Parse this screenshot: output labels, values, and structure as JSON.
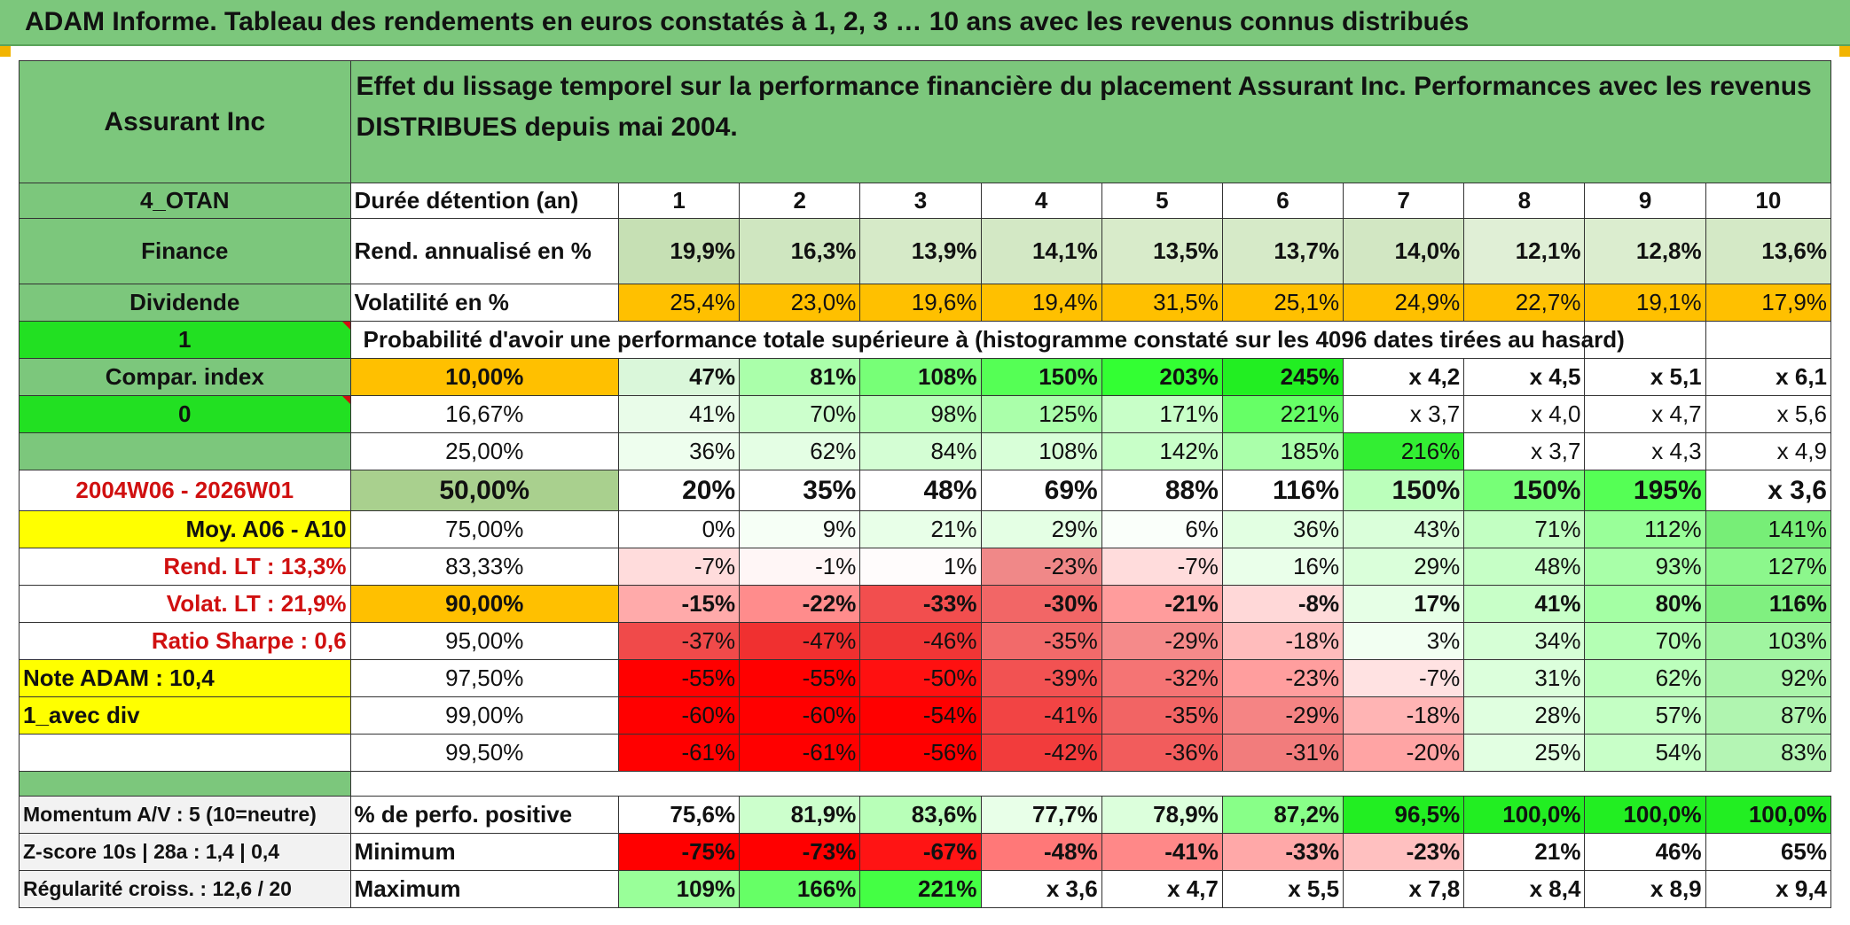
{
  "report_title": "ADAM Informe. Tableau des rendements en euros constatés à 1, 2, 3 … 10 ans avec les revenus connus distribués",
  "company": "Assurant Inc",
  "table_title": "Effet du lissage temporel sur la performance financière du placement Assurant Inc. Performances avec les revenus DISTRIBUES depuis mai 2004.",
  "side": {
    "tag1": "4_OTAN",
    "tag2": "Finance",
    "tag3": "Dividende",
    "tag4": "1",
    "tag5": "Compar. index",
    "tag6": "0",
    "period": "2004W06 - 2026W01",
    "moy": "Moy. A06 - A10",
    "rend_lt": "Rend. LT :   13,3%",
    "volat_lt": "Volat. LT :   21,9%",
    "sharpe": "Ratio Sharpe :    0,6",
    "note": "Note ADAM : 10,4",
    "div": "1_avec div",
    "momentum": "Momentum A/V : 5 (10=neutre)",
    "zscore": "Z-score 10s | 28a : 1,4 | 0,4",
    "regularite": "Régularité croiss. : 12,6 / 20"
  },
  "duration_label": "Durée détention (an)",
  "years": [
    "1",
    "2",
    "3",
    "4",
    "5",
    "6",
    "7",
    "8",
    "9",
    "10"
  ],
  "rend_label": "Rend. annualisé en %",
  "rend": [
    "19,9%",
    "16,3%",
    "13,9%",
    "14,1%",
    "13,5%",
    "13,7%",
    "14,0%",
    "12,1%",
    "12,8%",
    "13,6%"
  ],
  "vol_label": "Volatilité en %",
  "vol": [
    "25,4%",
    "23,0%",
    "19,6%",
    "19,4%",
    "31,5%",
    "25,1%",
    "24,9%",
    "22,7%",
    "19,1%",
    "17,9%"
  ],
  "prob_label": "Probabilité d'avoir une performance totale supérieure à (histogramme constaté sur les 4096 dates tirées au hasard)",
  "pct_rows": [
    {
      "p": "10,00%",
      "v": [
        "47%",
        "81%",
        "108%",
        "150%",
        "203%",
        "245%",
        "x 4,2",
        "x 4,5",
        "x 5,1",
        "x 6,1"
      ]
    },
    {
      "p": "16,67%",
      "v": [
        "41%",
        "70%",
        "98%",
        "125%",
        "171%",
        "221%",
        "x 3,7",
        "x 4,0",
        "x 4,7",
        "x 5,6"
      ]
    },
    {
      "p": "25,00%",
      "v": [
        "36%",
        "62%",
        "84%",
        "108%",
        "142%",
        "185%",
        "216%",
        "x 3,7",
        "x 4,3",
        "x 4,9"
      ]
    },
    {
      "p": "50,00%",
      "v": [
        "20%",
        "35%",
        "48%",
        "69%",
        "88%",
        "116%",
        "150%",
        "150%",
        "195%",
        "x 3,6"
      ]
    },
    {
      "p": "75,00%",
      "v": [
        "0%",
        "9%",
        "21%",
        "29%",
        "6%",
        "36%",
        "43%",
        "71%",
        "112%",
        "141%"
      ]
    },
    {
      "p": "83,33%",
      "v": [
        "-7%",
        "-1%",
        "1%",
        "-23%",
        "-7%",
        "16%",
        "29%",
        "48%",
        "93%",
        "127%"
      ]
    },
    {
      "p": "90,00%",
      "v": [
        "-15%",
        "-22%",
        "-33%",
        "-30%",
        "-21%",
        "-8%",
        "17%",
        "41%",
        "80%",
        "116%"
      ]
    },
    {
      "p": "95,00%",
      "v": [
        "-37%",
        "-47%",
        "-46%",
        "-35%",
        "-29%",
        "-18%",
        "3%",
        "34%",
        "70%",
        "103%"
      ]
    },
    {
      "p": "97,50%",
      "v": [
        "-55%",
        "-55%",
        "-50%",
        "-39%",
        "-32%",
        "-23%",
        "-7%",
        "31%",
        "62%",
        "92%"
      ]
    },
    {
      "p": "99,00%",
      "v": [
        "-60%",
        "-60%",
        "-54%",
        "-41%",
        "-35%",
        "-29%",
        "-18%",
        "28%",
        "57%",
        "87%"
      ]
    },
    {
      "p": "99,50%",
      "v": [
        "-61%",
        "-61%",
        "-56%",
        "-42%",
        "-36%",
        "-31%",
        "-20%",
        "25%",
        "54%",
        "83%"
      ]
    }
  ],
  "positive_label": "% de perfo. positive",
  "positive": [
    "75,6%",
    "81,9%",
    "83,6%",
    "77,7%",
    "78,9%",
    "87,2%",
    "96,5%",
    "100,0%",
    "100,0%",
    "100,0%"
  ],
  "min_label": "Minimum",
  "min": [
    "-75%",
    "-73%",
    "-67%",
    "-48%",
    "-41%",
    "-33%",
    "-23%",
    "21%",
    "46%",
    "65%"
  ],
  "max_label": "Maximum",
  "max": [
    "109%",
    "166%",
    "221%",
    "x 3,6",
    "x 4,7",
    "x 5,5",
    "x 7,8",
    "x 8,4",
    "x 8,9",
    "x 9,4"
  ],
  "colors": {
    "header_green": "#7cc77c",
    "rend_green": "#c6e0b4",
    "vol_orange": "#ffc000",
    "bright_green": "#00ff00",
    "yellow": "#ffff00",
    "red_text": "#d01010"
  }
}
